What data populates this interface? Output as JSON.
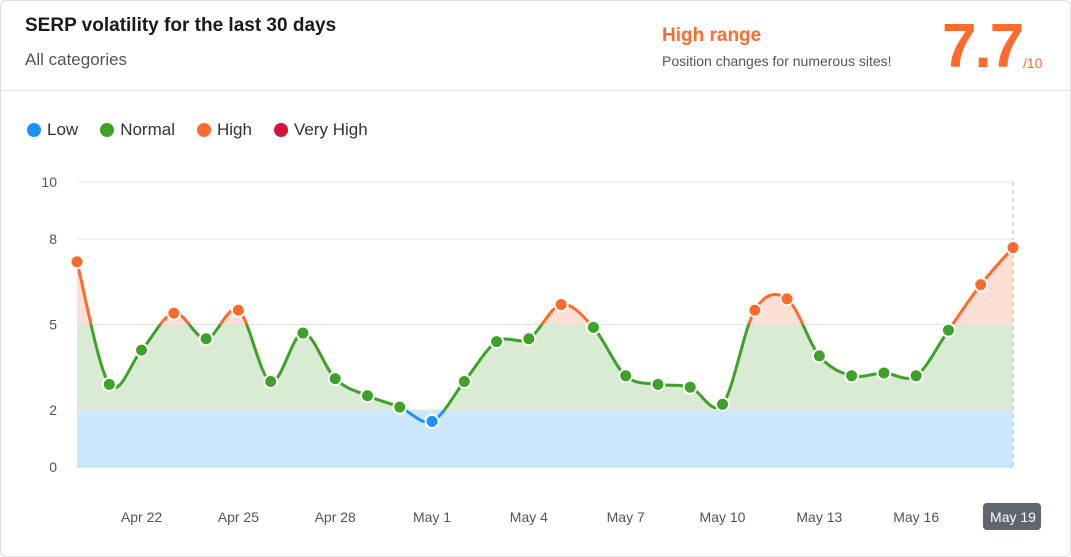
{
  "header": {
    "title": "SERP volatility for the last 30 days",
    "subtitle": "All categories",
    "range_label": "High range",
    "range_desc": "Position changes for numerous sites!",
    "score": "7.7",
    "score_max": "/10"
  },
  "legend": [
    {
      "label": "Low",
      "color": "#1e90ff"
    },
    {
      "label": "Normal",
      "color": "#3fa12a"
    },
    {
      "label": "High",
      "color": "#ff6b2c"
    },
    {
      "label": "Very High",
      "color": "#d7103c"
    }
  ],
  "colors": {
    "low": "#1e90ff",
    "normal": "#3fa12a",
    "high": "#ff6b2c",
    "veryhigh": "#d7103c",
    "low_band": "#cce8fd",
    "normal_band": "#d9ecd3",
    "high_band": "#fde0d4"
  },
  "chart_data": {
    "type": "line",
    "y_ticks": [
      "0",
      "2",
      "5",
      "8",
      "10"
    ],
    "ylim": [
      0,
      10
    ],
    "thresholds": {
      "low_max": 2,
      "normal_max": 5,
      "high_max": 8
    },
    "x_tick_labels": [
      "Apr 22",
      "Apr 25",
      "Apr 28",
      "May 1",
      "May 4",
      "May 7",
      "May 10",
      "May 13",
      "May 16",
      "May 19"
    ],
    "x_tick_indices": [
      2,
      5,
      8,
      11,
      14,
      17,
      20,
      23,
      26,
      29
    ],
    "highlight_label": "May 19",
    "values": [
      7.2,
      2.9,
      4.1,
      5.4,
      4.5,
      5.5,
      3.0,
      4.7,
      3.1,
      2.5,
      2.1,
      1.6,
      3.0,
      4.4,
      4.5,
      5.7,
      4.9,
      3.2,
      2.9,
      2.8,
      2.2,
      5.5,
      5.9,
      3.9,
      3.2,
      3.3,
      3.2,
      4.8,
      6.4,
      7.7
    ]
  }
}
